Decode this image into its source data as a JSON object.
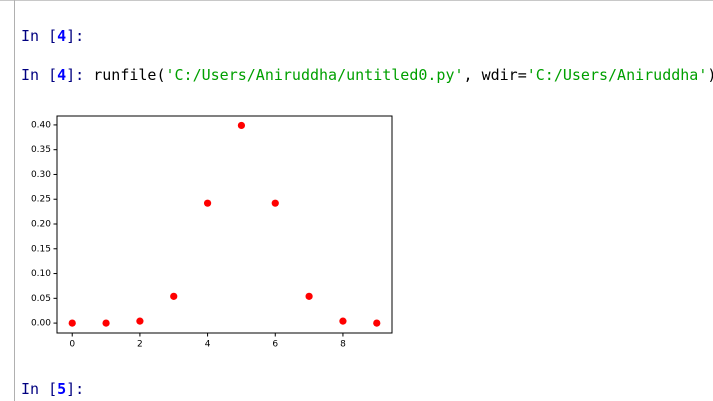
{
  "console": {
    "lines": [
      {
        "parts": [
          "In [",
          "4",
          "]:"
        ]
      },
      {
        "parts": [
          "In [",
          "4",
          "]:",
          " runfile(",
          "'C:/Users/Aniruddha/untitled0.py'",
          ", wdir=",
          "'C:/Users/Aniruddha'",
          ")"
        ]
      },
      {
        "parts": [
          "In [",
          "5",
          "]:"
        ]
      }
    ]
  },
  "chart_data": {
    "type": "scatter",
    "x": [
      0,
      1,
      2,
      3,
      4,
      5,
      6,
      7,
      8,
      9
    ],
    "values": [
      0.0,
      0.0,
      0.004,
      0.054,
      0.242,
      0.399,
      0.242,
      0.054,
      0.004,
      0.0
    ],
    "color": "#ff0000",
    "xlim": [
      -0.45,
      9.45
    ],
    "ylim": [
      -0.02,
      0.418
    ],
    "xticks": [
      0,
      2,
      4,
      6,
      8
    ],
    "yticks": [
      {
        "value": 0,
        "label": "0.00"
      },
      {
        "value": 0.05,
        "label": "0.05"
      },
      {
        "value": 0.1,
        "label": "0.10"
      },
      {
        "value": 0.15,
        "label": "0.15"
      },
      {
        "value": 0.2,
        "label": "0.20"
      },
      {
        "value": 0.25,
        "label": "0.25"
      },
      {
        "value": 0.3,
        "label": "0.30"
      },
      {
        "value": 0.35,
        "label": "0.35"
      },
      {
        "value": 0.4,
        "label": "0.40"
      }
    ],
    "grid": false
  }
}
